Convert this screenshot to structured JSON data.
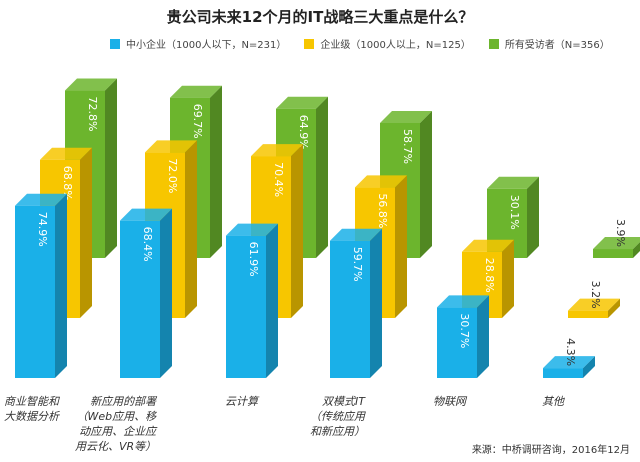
{
  "chart_data": {
    "type": "bar",
    "title": "贵公司未来12个月的IT战略三大重点是什么？",
    "categories": [
      "商业智能和\n大数据分析",
      "新应用的部署\n（Web应用、移\n动应用、企业应\n用云化、VR等）",
      "云计算",
      "双模式IT\n（传统应用\n和新应用）",
      "物联网",
      "其他"
    ],
    "series": [
      {
        "name": "中小企业（1000人以下，N=231）",
        "color": "#1ab0e8",
        "values": [
          74.9,
          68.4,
          61.9,
          59.7,
          30.7,
          4.3
        ]
      },
      {
        "name": "企业级（1000人以上，N=125）",
        "color": "#f7c600",
        "values": [
          68.8,
          72.0,
          70.4,
          56.8,
          28.8,
          3.2
        ]
      },
      {
        "name": "所有受访者（N=356）",
        "color": "#6cb52d",
        "values": [
          72.8,
          69.7,
          64.9,
          58.7,
          30.1,
          3.9
        ]
      }
    ],
    "unit": "%",
    "source": "来源：中桥调研咨询，2016年12月"
  }
}
